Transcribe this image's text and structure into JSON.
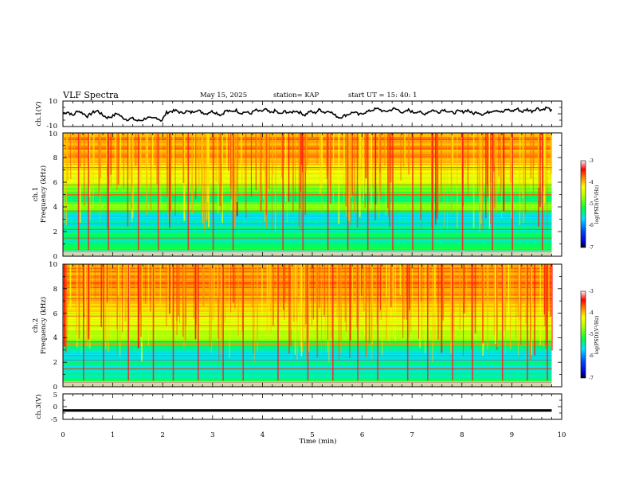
{
  "header": {
    "title": "VLF Spectra",
    "date": "May 15, 2025",
    "station": "station= KAP",
    "start": "start  UT =   15: 40: 1"
  },
  "chart_data": [
    {
      "type": "line",
      "panel": "ch1-waveform",
      "ylabel": "ch.1(V)",
      "ylim": [
        -10,
        10
      ],
      "y_ticks": [
        "10",
        "-10"
      ],
      "xlim": [
        0,
        10
      ],
      "x_extent_min": 9.8,
      "y_values_volts": [
        0.5,
        1.5,
        -1.5,
        2.5,
        0.5,
        -2,
        1,
        2.5,
        -1,
        -3,
        -2,
        0.5,
        -3,
        -4.5,
        -3.5,
        -5.5,
        -5,
        -3,
        -4,
        -3,
        -5.5,
        1,
        2,
        2.5,
        0.5,
        2,
        1,
        3,
        1.5,
        0,
        2,
        1,
        -1,
        2.5,
        1.5,
        3,
        0.5,
        1.5,
        0,
        3,
        1.5,
        3.5,
        0.5,
        2.5,
        -0.5,
        2,
        0.5,
        2.5,
        1,
        -1,
        2,
        0.5,
        3.5,
        1,
        2.5,
        -1,
        -3,
        -1.5,
        0,
        1.5,
        -1,
        1,
        2,
        3.5,
        4,
        1.5,
        2.5,
        4,
        3,
        0.5,
        3,
        1,
        2,
        -0.5,
        1.5,
        3,
        1,
        3.5,
        2,
        0.5,
        2,
        1.5,
        3,
        0,
        1.5,
        -0.5,
        1,
        2.5,
        3,
        1,
        3.5,
        2,
        4,
        1.5,
        3.5,
        2,
        4.5,
        3,
        5,
        2.5
      ]
    },
    {
      "type": "heatmap",
      "panel": "ch1-spectrogram",
      "ylabel_channel": "ch.1",
      "ylabel": "Frequency (kHz)",
      "ylim": [
        0,
        10
      ],
      "y_ticks": [
        "0",
        "2",
        "4",
        "6",
        "8",
        "10"
      ],
      "xlim": [
        0,
        10
      ],
      "colorbar": {
        "label": "log(PSD)(V²/Hz)",
        "range": [
          -7,
          -3
        ],
        "ticks": [
          "-3",
          "-4",
          "-5",
          "-6",
          "-7"
        ]
      },
      "band_profile_freq_khz": [
        0.5,
        1.0,
        1.5,
        2.0,
        2.5,
        3.0,
        3.5,
        4.0,
        4.5,
        5.0,
        5.5,
        6.0,
        6.5,
        7.0,
        7.5,
        8.0,
        8.5,
        9.0,
        9.5,
        10.0
      ],
      "band_profile_log_psd": [
        -5.2,
        -5.3,
        -5.4,
        -5.3,
        -5.6,
        -5.7,
        -5.5,
        -4.6,
        -5.2,
        -5.3,
        -4.8,
        -4.4,
        -4.2,
        -4.1,
        -4.0,
        -3.9,
        -3.9,
        -3.8,
        -3.8,
        -3.9
      ],
      "impulse_times_min": [
        0.3,
        0.5,
        0.9,
        1.5,
        1.9,
        2.5,
        3.0,
        3.4,
        4.4,
        4.8,
        5.3,
        5.7,
        6.1,
        6.6,
        7.0,
        7.4,
        8.0,
        8.6,
        9.0,
        9.6
      ]
    },
    {
      "type": "heatmap",
      "panel": "ch2-spectrogram",
      "ylabel_channel": "ch.2",
      "ylabel": "Frequency (kHz)",
      "ylim": [
        0,
        10
      ],
      "y_ticks": [
        "0",
        "2",
        "4",
        "6",
        "8",
        "10"
      ],
      "xlim": [
        0,
        10
      ],
      "colorbar": {
        "label": "log(PSD)(V²/Hz)",
        "range": [
          -7,
          -3
        ],
        "ticks": [
          "-3",
          "-4",
          "-5",
          "-6",
          "-7"
        ]
      },
      "band_profile_freq_khz": [
        0.5,
        1.0,
        1.5,
        2.0,
        2.5,
        3.0,
        3.5,
        4.0,
        4.5,
        5.0,
        5.5,
        6.0,
        6.5,
        7.0,
        7.5,
        8.0,
        8.5,
        9.0,
        9.5,
        10.0
      ],
      "band_profile_log_psd": [
        -5.3,
        -5.4,
        -5.5,
        -5.4,
        -5.7,
        -5.5,
        -5.4,
        -4.5,
        -4.7,
        -4.3,
        -4.3,
        -4.2,
        -4.1,
        -4.0,
        -3.9,
        -3.8,
        -3.8,
        -3.8,
        -3.8,
        -3.9
      ],
      "impulse_times_min": [
        0.4,
        0.8,
        1.3,
        1.8,
        2.2,
        2.7,
        3.2,
        3.6,
        4.3,
        4.9,
        5.4,
        5.9,
        6.3,
        6.9,
        7.3,
        7.8,
        8.2,
        8.8,
        9.3,
        9.7
      ]
    },
    {
      "type": "line",
      "panel": "ch3-waveform",
      "ylabel": "ch.3(V)",
      "ylim": [
        -5,
        5
      ],
      "y_ticks": [
        "5",
        "0",
        "-5"
      ],
      "xlim": [
        0,
        10
      ],
      "x_extent_min": 9.8,
      "level_volts": -1.5,
      "band_half_width_volts": 0.5
    }
  ],
  "xaxis": {
    "label": "Time  (min)",
    "ticks": [
      "0",
      "1",
      "2",
      "3",
      "4",
      "5",
      "6",
      "7",
      "8",
      "9",
      "10"
    ]
  }
}
